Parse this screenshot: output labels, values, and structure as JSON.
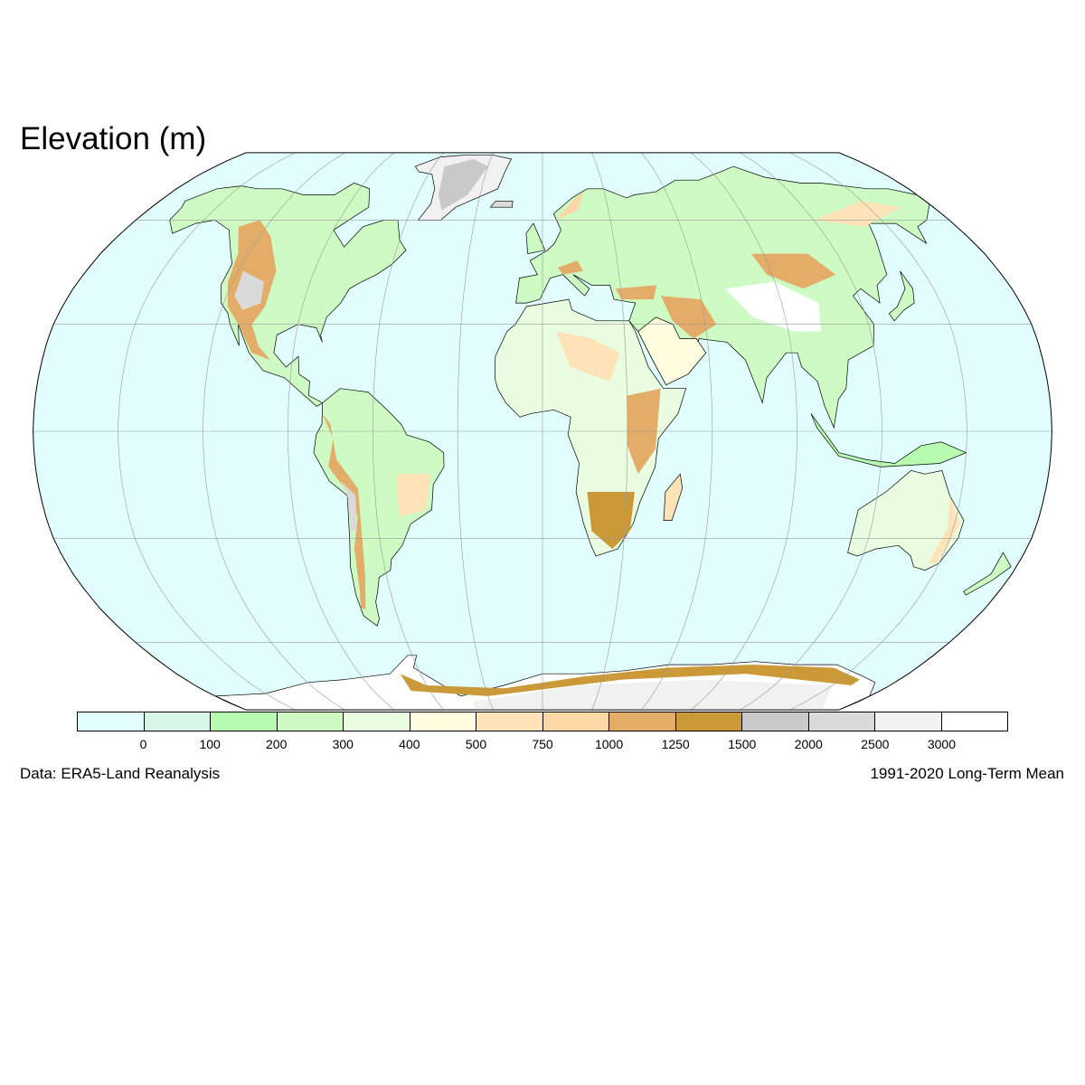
{
  "title": "Elevation (m)",
  "footer": {
    "source": "Data: ERA5-Land Reanalysis",
    "period": "1991-2020 Long-Term Mean"
  },
  "legend": {
    "tick_labels": [
      "0",
      "100",
      "200",
      "300",
      "400",
      "500",
      "750",
      "1000",
      "1250",
      "1500",
      "2000",
      "2500",
      "3000"
    ],
    "box_colors": [
      "#e1fdfd",
      "#d9f7e8",
      "#b6fbaf",
      "#cdfbc3",
      "#eafde0",
      "#fffde0",
      "#fde3b7",
      "#fdd7a5",
      "#e3ad69",
      "#cc9938",
      "#c9c9c9",
      "#dadada",
      "#f1f1f1",
      "#ffffff"
    ]
  },
  "map": {
    "projection": "Robinson",
    "ocean_color": "#e1fdfd",
    "graticule_color": "#9a9a9a",
    "coastline_color": "#000000"
  }
}
